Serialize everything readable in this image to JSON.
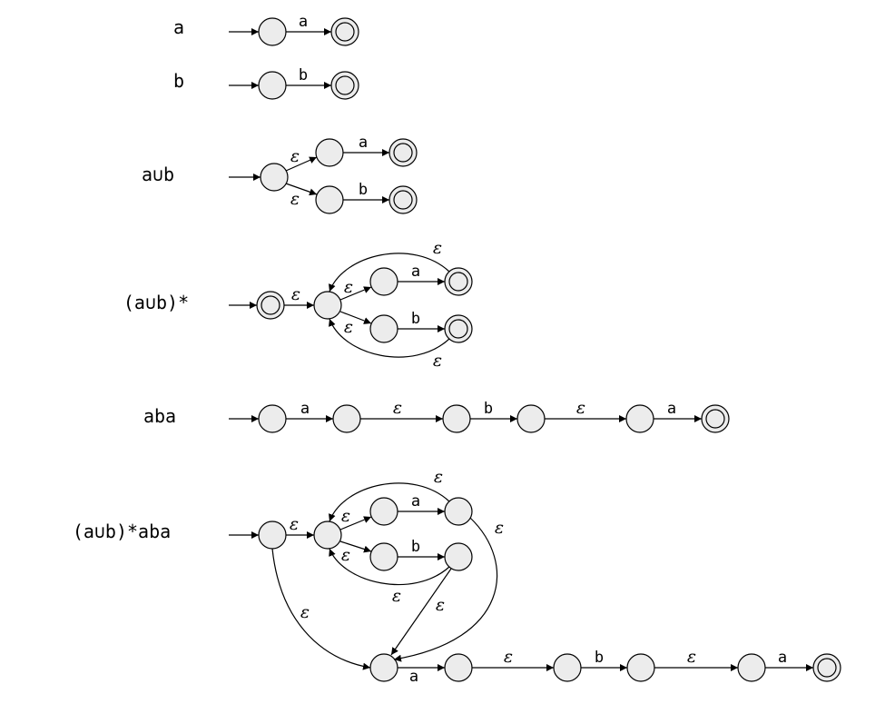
{
  "symbols": {
    "a": "a",
    "b": "b",
    "epsilon": "ε"
  },
  "rows": [
    {
      "regex": "a"
    },
    {
      "regex": "b"
    },
    {
      "regex": "a∪b"
    },
    {
      "regex": "(a∪b)*"
    },
    {
      "regex": "aba"
    },
    {
      "regex": "(a∪b)*aba"
    }
  ],
  "colors": {
    "state_fill": "#ececec",
    "stroke": "#000000"
  }
}
